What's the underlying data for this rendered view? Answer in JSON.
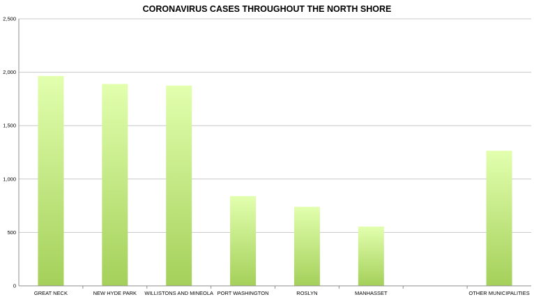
{
  "chart_data": {
    "type": "bar",
    "title": "CORONAVIRUS CASES THROUGHOUT THE NORTH SHORE",
    "xlabel": "",
    "ylabel": "",
    "categories": [
      "GREAT NECK",
      "NEW HYDE PARK",
      "WILLISTONS AND MINEOLA",
      "PORT WASHINGTON",
      "ROSLYN",
      "MANHASSET",
      "",
      "OTHER MUNICIPALITIES"
    ],
    "values": [
      1965,
      1890,
      1875,
      840,
      740,
      555,
      null,
      1265
    ],
    "ylim": [
      0,
      2500
    ],
    "yticks": [
      0,
      500,
      1000,
      1500,
      2000,
      2500
    ],
    "ytick_labels": [
      "0",
      "500",
      "1,000",
      "1,500",
      "2,000",
      "2,500"
    ],
    "grid": true,
    "legend": "none",
    "colors": {
      "bar_top": "#e2ffae",
      "bar_bottom": "#a4d05a",
      "gridline": "#c8c8c8",
      "axis": "#8c8c8c"
    }
  }
}
